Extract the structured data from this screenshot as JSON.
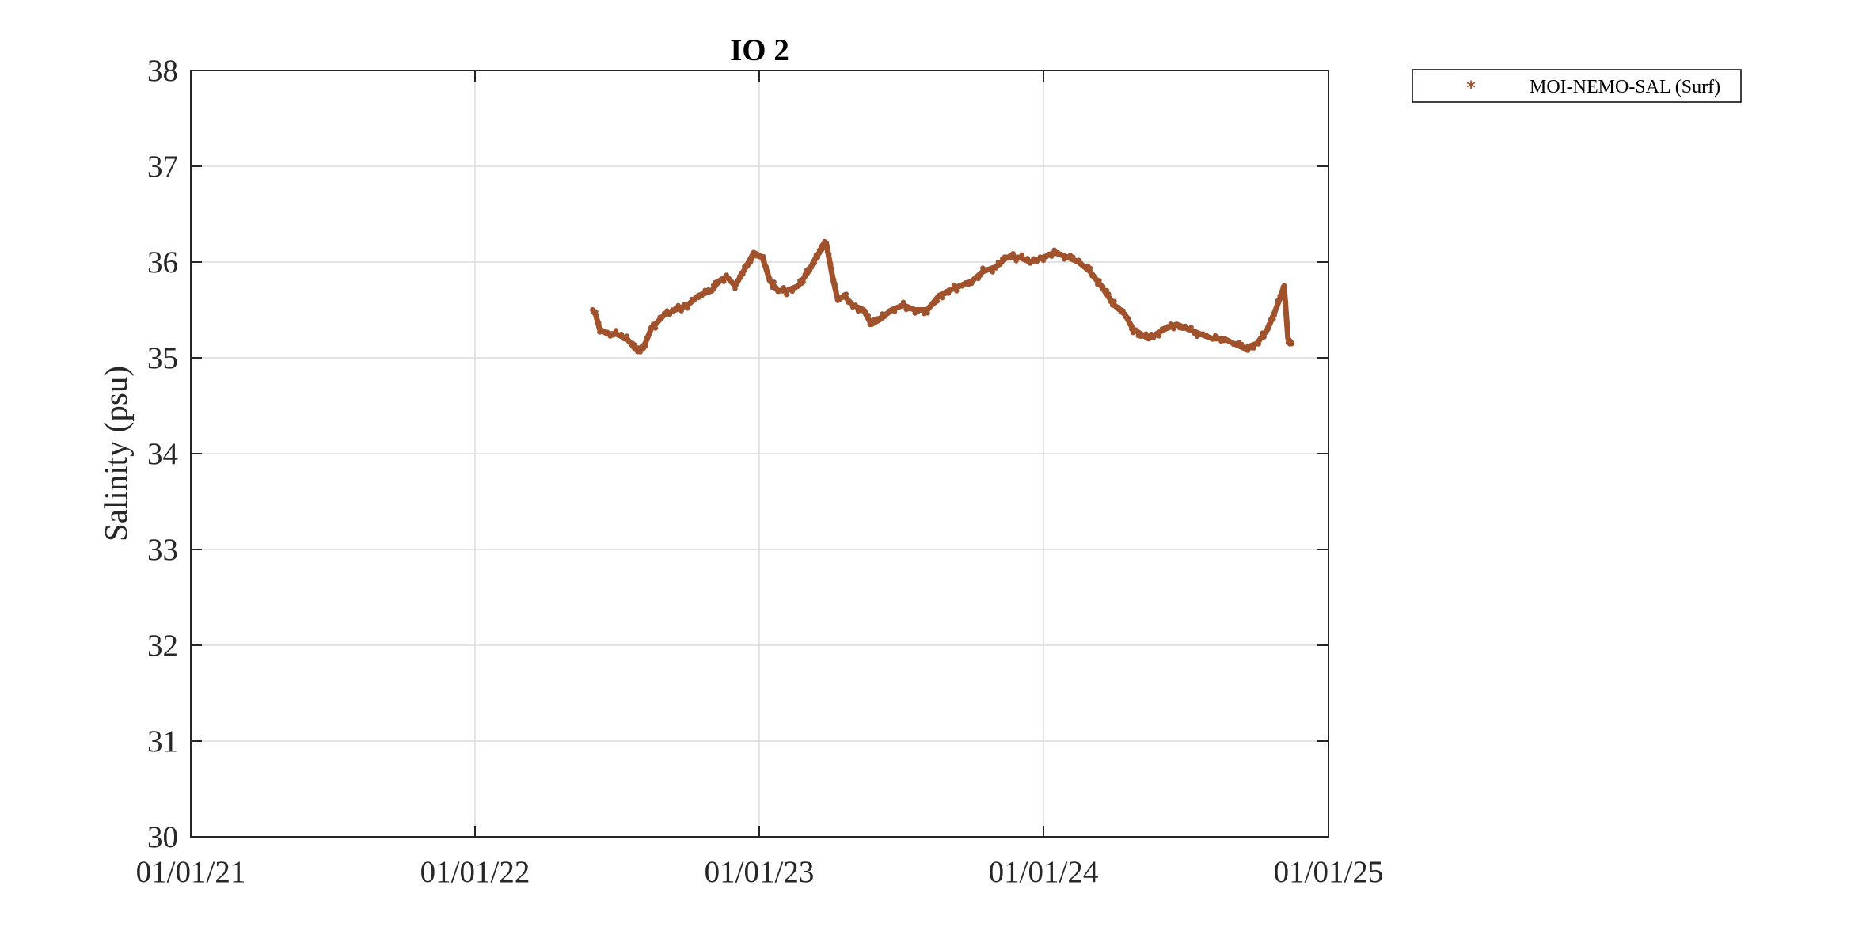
{
  "chart_data": {
    "type": "scatter",
    "title": "IO 2",
    "xlabel": "",
    "ylabel": "Salinity (psu)",
    "x_ticks": [
      "01/01/21",
      "01/01/22",
      "01/01/23",
      "01/01/24",
      "01/01/25"
    ],
    "xlim": [
      "2021-01-01",
      "2025-01-01"
    ],
    "ylim": [
      30,
      38
    ],
    "y_ticks": [
      30,
      31,
      32,
      33,
      34,
      35,
      36,
      37,
      38
    ],
    "grid": true,
    "legend_position": "outside-top-right",
    "series": [
      {
        "name": "MOI-NEMO-SAL (Surf)",
        "color": "#a0522d",
        "marker": "asterisk",
        "x": [
          "2022-06-01",
          "2022-06-05",
          "2022-06-10",
          "2022-06-20",
          "2022-07-01",
          "2022-07-15",
          "2022-07-25",
          "2022-08-05",
          "2022-08-15",
          "2022-09-01",
          "2022-09-15",
          "2022-10-01",
          "2022-10-15",
          "2022-11-01",
          "2022-11-10",
          "2022-11-20",
          "2022-12-01",
          "2022-12-15",
          "2022-12-25",
          "2023-01-05",
          "2023-01-15",
          "2023-01-25",
          "2023-02-05",
          "2023-02-20",
          "2023-03-05",
          "2023-03-15",
          "2023-03-28",
          "2023-04-05",
          "2023-04-12",
          "2023-04-20",
          "2023-05-01",
          "2023-05-15",
          "2023-05-25",
          "2023-06-05",
          "2023-06-20",
          "2023-07-05",
          "2023-07-20",
          "2023-08-05",
          "2023-08-20",
          "2023-09-01",
          "2023-09-15",
          "2023-10-01",
          "2023-10-15",
          "2023-11-01",
          "2023-11-15",
          "2023-12-01",
          "2023-12-15",
          "2024-01-01",
          "2024-01-15",
          "2024-02-01",
          "2024-02-15",
          "2024-03-01",
          "2024-03-15",
          "2024-04-01",
          "2024-04-15",
          "2024-04-25",
          "2024-05-05",
          "2024-05-15",
          "2024-05-25",
          "2024-06-05",
          "2024-06-20",
          "2024-07-05",
          "2024-07-20",
          "2024-08-05",
          "2024-08-20",
          "2024-09-01",
          "2024-09-15",
          "2024-10-01",
          "2024-10-15",
          "2024-10-25",
          "2024-11-01",
          "2024-11-05",
          "2024-11-10",
          "2024-11-15"
        ],
        "y": [
          35.5,
          35.45,
          35.3,
          35.25,
          35.25,
          35.2,
          35.1,
          35.1,
          35.3,
          35.45,
          35.5,
          35.55,
          35.65,
          35.7,
          35.8,
          35.85,
          35.75,
          35.95,
          36.1,
          36.05,
          35.8,
          35.7,
          35.7,
          35.75,
          35.9,
          36.05,
          36.2,
          35.85,
          35.6,
          35.65,
          35.55,
          35.5,
          35.35,
          35.4,
          35.5,
          35.55,
          35.5,
          35.5,
          35.65,
          35.7,
          35.75,
          35.8,
          35.9,
          35.95,
          36.05,
          36.05,
          36.0,
          36.05,
          36.1,
          36.05,
          36.0,
          35.9,
          35.75,
          35.55,
          35.45,
          35.3,
          35.25,
          35.2,
          35.25,
          35.3,
          35.35,
          35.3,
          35.25,
          35.2,
          35.2,
          35.15,
          35.1,
          35.15,
          35.3,
          35.5,
          35.65,
          35.75,
          35.2,
          35.15
        ]
      }
    ]
  }
}
